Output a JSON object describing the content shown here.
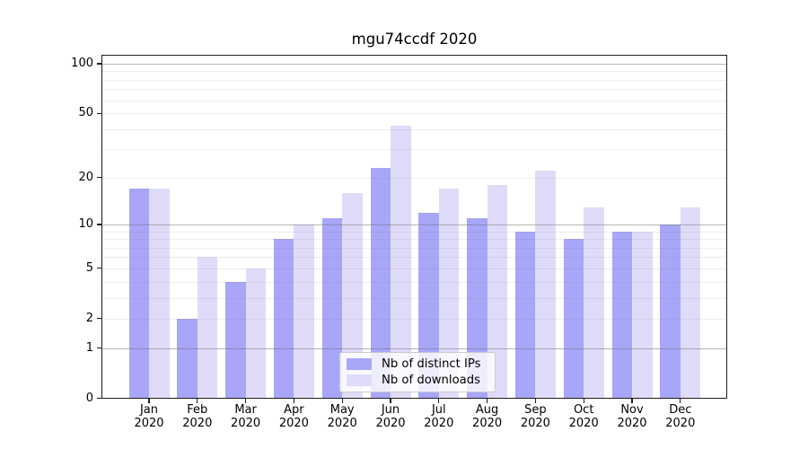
{
  "title": "mgu74ccdf 2020",
  "colors": {
    "ips_bar": "#a8a6f8",
    "downloads_bar": "#dedcf9",
    "grid_major": "rgba(110,110,110,0.50)",
    "grid_minor": "rgba(120,120,120,0.13)",
    "spine": "#1c1c1c",
    "legend_border": "#cccccc"
  },
  "legend": {
    "items": [
      {
        "label": "Nb of distinct IPs",
        "series": "ips"
      },
      {
        "label": "Nb of downloads",
        "series": "downloads"
      }
    ]
  },
  "chart_data": {
    "type": "bar",
    "title": "mgu74ccdf 2020",
    "categories": [
      "Jan 2020",
      "Feb 2020",
      "Mar 2020",
      "Apr 2020",
      "May 2020",
      "Jun 2020",
      "Jul 2020",
      "Aug 2020",
      "Sep 2020",
      "Oct 2020",
      "Nov 2020",
      "Dec 2020"
    ],
    "x_tick_months": [
      "Jan",
      "Feb",
      "Mar",
      "Apr",
      "May",
      "Jun",
      "Jul",
      "Aug",
      "Sep",
      "Oct",
      "Nov",
      "Dec"
    ],
    "x_tick_year": "2020",
    "series": [
      {
        "name": "Nb of distinct IPs",
        "values": [
          17,
          2,
          4,
          8,
          11,
          23,
          12,
          11,
          9,
          8,
          9,
          10
        ]
      },
      {
        "name": "Nb of downloads",
        "values": [
          17,
          6,
          5,
          10,
          16,
          42,
          17,
          18,
          22,
          13,
          9,
          13
        ]
      }
    ],
    "xlabel": "",
    "ylabel": "",
    "yscale": "log1p",
    "ylim": [
      0,
      103
    ],
    "yticks": [
      0,
      1,
      2,
      5,
      10,
      20,
      50,
      100
    ],
    "ygrid_major": [
      1,
      10,
      100
    ],
    "ygrid_minor": [
      2,
      3,
      4,
      5,
      6,
      7,
      8,
      9,
      20,
      30,
      40,
      50,
      60,
      70,
      80,
      90
    ],
    "grid": "both",
    "legend_position": "lower center"
  }
}
